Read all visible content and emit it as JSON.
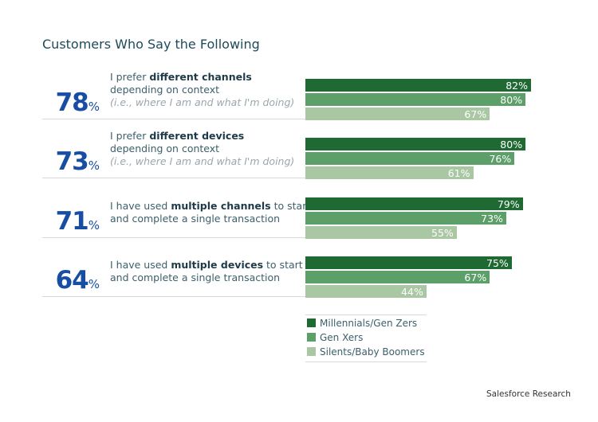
{
  "chart_data": {
    "type": "bar",
    "orientation": "horizontal",
    "title": "Customers Who Say the Following",
    "categories": [
      {
        "overall": "78",
        "pre": "I prefer ",
        "bold": "different channels",
        "post": "",
        "line2": "depending on context",
        "note": "(i.e., where I am and what I'm doing)"
      },
      {
        "overall": "73",
        "pre": "I prefer ",
        "bold": "different devices",
        "post": "",
        "line2": "depending on context",
        "note": "(i.e., where I am and what I'm doing)"
      },
      {
        "overall": "71",
        "pre": "I have used ",
        "bold": "multiple channels",
        "post": " to start",
        "line2": "and complete a single transaction",
        "note": ""
      },
      {
        "overall": "64",
        "pre": "I have used ",
        "bold": "multiple devices",
        "post": " to start",
        "line2": "and complete a single transaction",
        "note": ""
      }
    ],
    "percent_sign": "%",
    "series": [
      {
        "name": "Millennials/Gen Zers",
        "color": "#1f6a33",
        "values": [
          82,
          80,
          79,
          75
        ]
      },
      {
        "name": "Gen Xers",
        "color": "#5c9f68",
        "values": [
          80,
          76,
          73,
          67
        ]
      },
      {
        "name": "Silents/Baby Boomers",
        "color": "#a9c7a3",
        "values": [
          67,
          61,
          55,
          44
        ]
      }
    ],
    "value_suffix": "%",
    "xlim": [
      0,
      100
    ],
    "legend_position": "bottom"
  },
  "source": "Salesforce Research"
}
